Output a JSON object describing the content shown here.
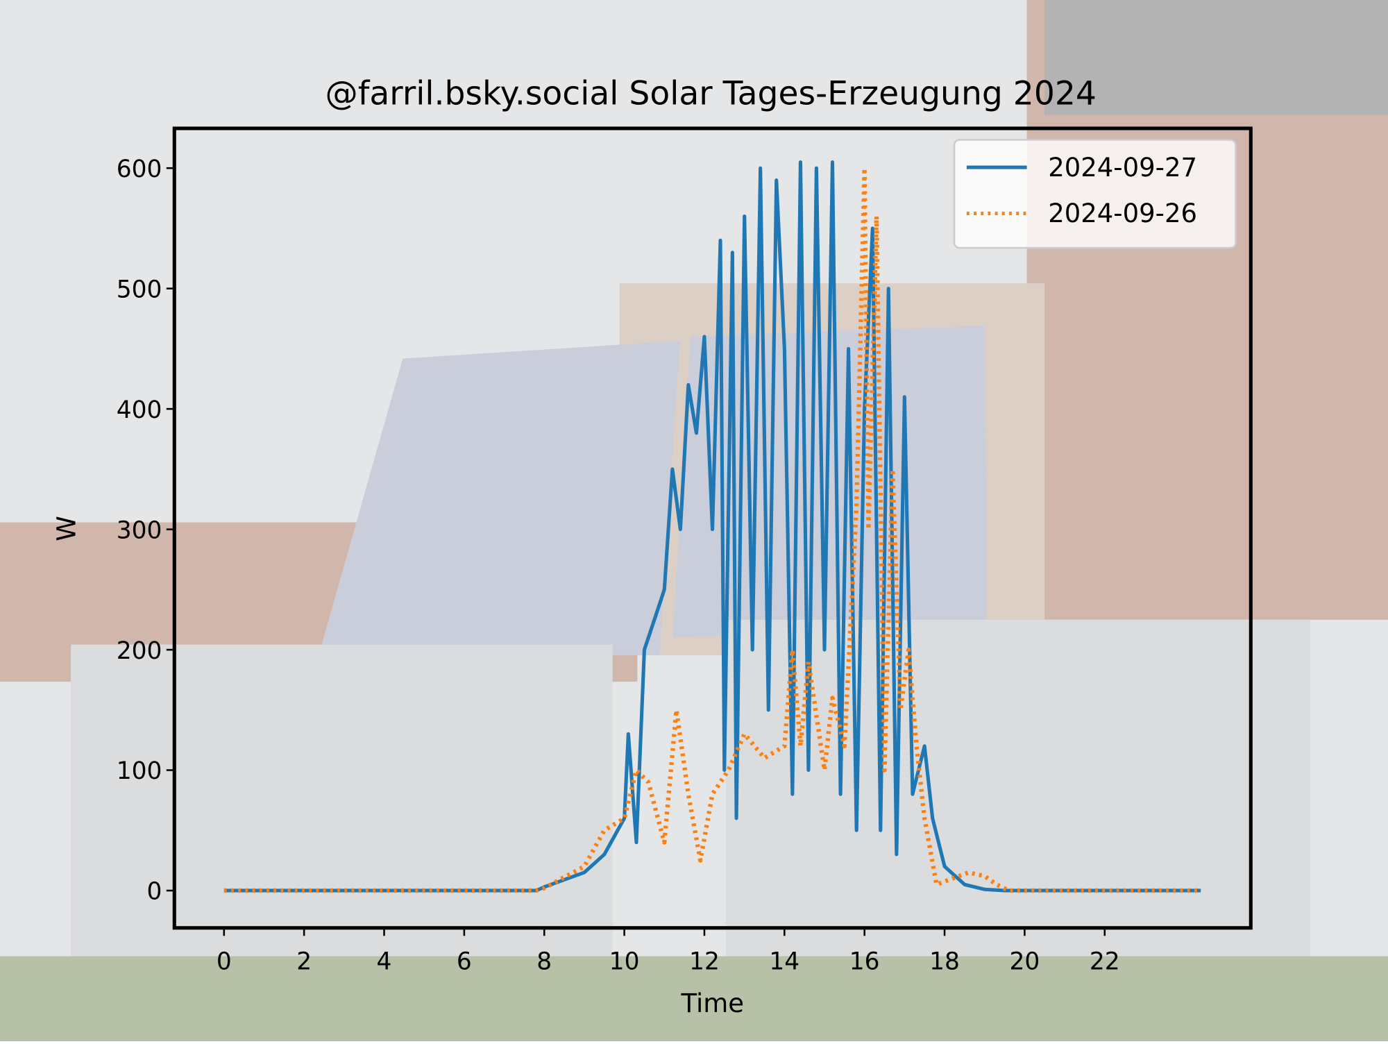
{
  "chart_data": {
    "type": "line",
    "title": "@farril.bsky.social Solar Tages-Erzeugung 2024",
    "xlabel": "Time",
    "ylabel": "W",
    "xlim": [
      -1.24,
      25.65
    ],
    "ylim": [
      -31,
      633
    ],
    "xticks": [
      0,
      2,
      4,
      6,
      8,
      10,
      12,
      14,
      16,
      18,
      20,
      22
    ],
    "yticks": [
      0,
      100,
      200,
      300,
      400,
      500,
      600
    ],
    "grid": false,
    "legend": "upper right",
    "series": [
      {
        "name": "2024-09-27",
        "color": "#1f77b4",
        "linestyle": "solid",
        "x": [
          0,
          7.8,
          8,
          9,
          9.5,
          10,
          10.1,
          10.3,
          10.5,
          10.8,
          11.0,
          11.2,
          11.4,
          11.6,
          11.8,
          12.0,
          12.2,
          12.4,
          12.5,
          12.7,
          12.8,
          13.0,
          13.2,
          13.4,
          13.6,
          13.8,
          14.0,
          14.2,
          14.4,
          14.6,
          14.8,
          15.0,
          15.2,
          15.4,
          15.6,
          15.8,
          16.0,
          16.2,
          16.4,
          16.6,
          16.8,
          17.0,
          17.2,
          17.5,
          17.7,
          18.0,
          18.5,
          19.0,
          19.5,
          24.4
        ],
        "values": [
          0,
          0,
          3,
          15,
          30,
          60,
          130,
          40,
          200,
          230,
          250,
          350,
          300,
          420,
          380,
          460,
          300,
          540,
          100,
          530,
          60,
          560,
          200,
          600,
          150,
          590,
          450,
          80,
          605,
          100,
          600,
          200,
          605,
          80,
          450,
          50,
          400,
          550,
          50,
          500,
          30,
          410,
          80,
          120,
          60,
          20,
          5,
          1,
          0,
          0
        ]
      },
      {
        "name": "2024-09-26",
        "color": "#ff7f0e",
        "linestyle": "dotted",
        "x": [
          0,
          7.8,
          8,
          9,
          9.5,
          10,
          10.3,
          10.6,
          11.0,
          11.3,
          11.6,
          11.9,
          12.2,
          12.6,
          13.0,
          13.5,
          14.0,
          14.2,
          14.4,
          14.6,
          15.0,
          15.2,
          15.5,
          15.8,
          16.0,
          16.1,
          16.3,
          16.5,
          16.7,
          16.9,
          17.1,
          17.3,
          17.5,
          17.8,
          18.2,
          18.6,
          19.0,
          19.3,
          19.6,
          24.4
        ],
        "values": [
          0,
          0,
          2,
          20,
          50,
          60,
          100,
          90,
          40,
          150,
          80,
          25,
          80,
          100,
          130,
          110,
          120,
          200,
          120,
          190,
          100,
          160,
          120,
          320,
          600,
          300,
          560,
          100,
          350,
          150,
          200,
          120,
          60,
          5,
          10,
          15,
          12,
          5,
          0,
          0
        ]
      }
    ]
  }
}
